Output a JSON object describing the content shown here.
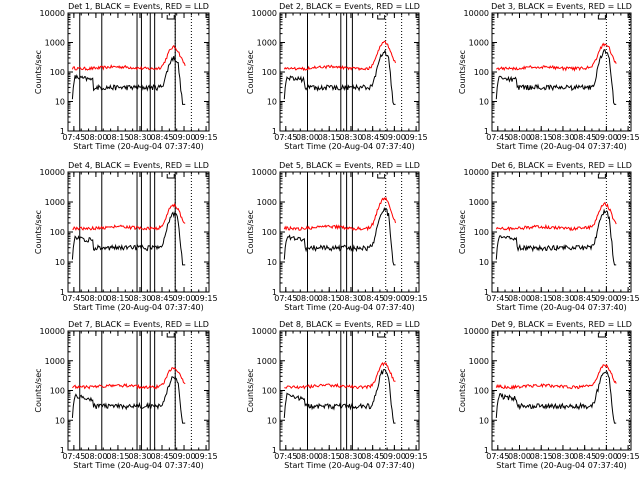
{
  "chart_data": [
    {
      "type": "line",
      "title": "Det 1, BLACK = Events, RED = LLD",
      "xlabel": "Start Time (20-Aug-04 07:37:40)",
      "ylabel": "Counts/sec",
      "yscale": "log",
      "ylim": [
        1,
        10000
      ],
      "xlim": [
        "07:41",
        "09:17"
      ],
      "xticks": [
        "07:45",
        "08:00",
        "08:15",
        "08:30",
        "08:45",
        "09:00",
        "09:15"
      ],
      "yticks": [
        "1",
        "10",
        "100",
        "1000",
        "10000"
      ],
      "vlines_solid": [
        "07:49",
        "08:04",
        "08:28",
        "08:31",
        "08:37",
        "08:40",
        "08:54"
      ],
      "vlines_dotted": [
        "08:54",
        "09:05"
      ],
      "lld_peak": 700,
      "events_peak": 300
    },
    {
      "type": "line",
      "title": "Det 2, BLACK = Events, RED = LLD",
      "xlabel": "Start Time (20-Aug-04 07:37:40)",
      "ylabel": "Counts/sec",
      "yscale": "log",
      "ylim": [
        1,
        10000
      ],
      "xlim": [
        "07:41",
        "09:17"
      ],
      "xticks": [
        "07:45",
        "08:00",
        "08:15",
        "08:30",
        "08:45",
        "09:00",
        "09:15"
      ],
      "yticks": [
        "1",
        "10",
        "100",
        "1000",
        "10000"
      ],
      "vlines_solid": [
        "08:00",
        "08:23",
        "08:27",
        "08:31"
      ],
      "vlines_dotted": [
        "08:54",
        "09:05"
      ],
      "lld_peak": 1050,
      "events_peak": 500
    },
    {
      "type": "line",
      "title": "Det 3, BLACK = Events, RED = LLD",
      "xlabel": "Start Time (20-Aug-04 07:37:40)",
      "ylabel": "Counts/sec",
      "yscale": "log",
      "ylim": [
        1,
        10000
      ],
      "xlim": [
        "07:41",
        "09:17"
      ],
      "xticks": [
        "07:45",
        "08:00",
        "08:15",
        "08:30",
        "08:45",
        "09:00",
        "09:15"
      ],
      "yticks": [
        "1",
        "10",
        "100",
        "1000",
        "10000"
      ],
      "vlines_solid": [],
      "vlines_dotted": [
        "09:00",
        "09:16"
      ],
      "lld_peak": 900,
      "events_peak": 500
    },
    {
      "type": "line",
      "title": "Det 4, BLACK = Events, RED = LLD",
      "xlabel": "Start Time (20-Aug-04 07:37:40)",
      "ylabel": "Counts/sec",
      "yscale": "log",
      "ylim": [
        1,
        10000
      ],
      "xlim": [
        "07:41",
        "09:17"
      ],
      "xticks": [
        "07:45",
        "08:00",
        "08:15",
        "08:30",
        "08:45",
        "09:00",
        "09:15"
      ],
      "yticks": [
        "1",
        "10",
        "100",
        "1000",
        "10000"
      ],
      "vlines_solid": [
        "07:49",
        "08:04",
        "08:28",
        "08:31",
        "08:37",
        "08:40",
        "08:54"
      ],
      "vlines_dotted": [
        "08:54",
        "09:05"
      ],
      "lld_peak": 800,
      "events_peak": 400
    },
    {
      "type": "line",
      "title": "Det 5, BLACK = Events, RED = LLD",
      "xlabel": "Start Time (20-Aug-04 07:37:40)",
      "ylabel": "Counts/sec",
      "yscale": "log",
      "ylim": [
        1,
        10000
      ],
      "xlim": [
        "07:41",
        "09:17"
      ],
      "xticks": [
        "07:45",
        "08:00",
        "08:15",
        "08:30",
        "08:45",
        "09:00",
        "09:15"
      ],
      "yticks": [
        "1",
        "10",
        "100",
        "1000",
        "10000"
      ],
      "vlines_solid": [
        "08:00",
        "08:23",
        "08:27",
        "08:31"
      ],
      "vlines_dotted": [
        "08:54",
        "09:05"
      ],
      "lld_peak": 1300,
      "events_peak": 600
    },
    {
      "type": "line",
      "title": "Det 6, BLACK = Events, RED = LLD",
      "xlabel": "Start Time (20-Aug-04 07:37:40)",
      "ylabel": "Counts/sec",
      "yscale": "log",
      "ylim": [
        1,
        10000
      ],
      "xlim": [
        "07:41",
        "09:17"
      ],
      "xticks": [
        "07:45",
        "08:00",
        "08:15",
        "08:30",
        "08:45",
        "09:00",
        "09:15"
      ],
      "yticks": [
        "1",
        "10",
        "100",
        "1000",
        "10000"
      ],
      "vlines_solid": [],
      "vlines_dotted": [
        "09:00",
        "09:16"
      ],
      "lld_peak": 850,
      "events_peak": 500
    },
    {
      "type": "line",
      "title": "Det 7, BLACK = Events, RED = LLD",
      "xlabel": "Start Time (20-Aug-04 07:37:40)",
      "ylabel": "Counts/sec",
      "yscale": "log",
      "ylim": [
        1,
        10000
      ],
      "xlim": [
        "07:41",
        "09:17"
      ],
      "xticks": [
        "07:45",
        "08:00",
        "08:15",
        "08:30",
        "08:45",
        "09:00",
        "09:15"
      ],
      "yticks": [
        "1",
        "10",
        "100",
        "1000",
        "10000"
      ],
      "vlines_solid": [
        "07:49",
        "08:04",
        "08:28",
        "08:31",
        "08:37",
        "08:40",
        "08:54"
      ],
      "vlines_dotted": [
        "08:54",
        "09:05"
      ],
      "lld_peak": 600,
      "events_peak": 280
    },
    {
      "type": "line",
      "title": "Det 8, BLACK = Events, RED = LLD",
      "xlabel": "Start Time (20-Aug-04 07:37:40)",
      "ylabel": "Counts/sec",
      "yscale": "log",
      "ylim": [
        1,
        10000
      ],
      "xlim": [
        "07:41",
        "09:17"
      ],
      "xticks": [
        "07:45",
        "08:00",
        "08:15",
        "08:30",
        "08:45",
        "09:00",
        "09:15"
      ],
      "yticks": [
        "1",
        "10",
        "100",
        "1000",
        "10000"
      ],
      "vlines_solid": [
        "08:00",
        "08:23",
        "08:27",
        "08:31"
      ],
      "vlines_dotted": [
        "08:54",
        "09:05"
      ],
      "lld_peak": 800,
      "events_peak": 450
    },
    {
      "type": "line",
      "title": "Det 9, BLACK = Events, RED = LLD",
      "xlabel": "Start Time (20-Aug-04 07:37:40)",
      "ylabel": "Counts/sec",
      "yscale": "log",
      "ylim": [
        1,
        10000
      ],
      "xlim": [
        "07:41",
        "09:17"
      ],
      "xticks": [
        "07:45",
        "08:00",
        "08:15",
        "08:30",
        "08:45",
        "09:00",
        "09:15"
      ],
      "yticks": [
        "1",
        "10",
        "100",
        "1000",
        "10000"
      ],
      "vlines_solid": [],
      "vlines_dotted": [
        "09:00",
        "09:16"
      ],
      "lld_peak": 700,
      "events_peak": 400
    }
  ],
  "colors": {
    "events": "#000000",
    "lld": "#ff0000",
    "axes": "#000000",
    "background": "#ffffff"
  }
}
